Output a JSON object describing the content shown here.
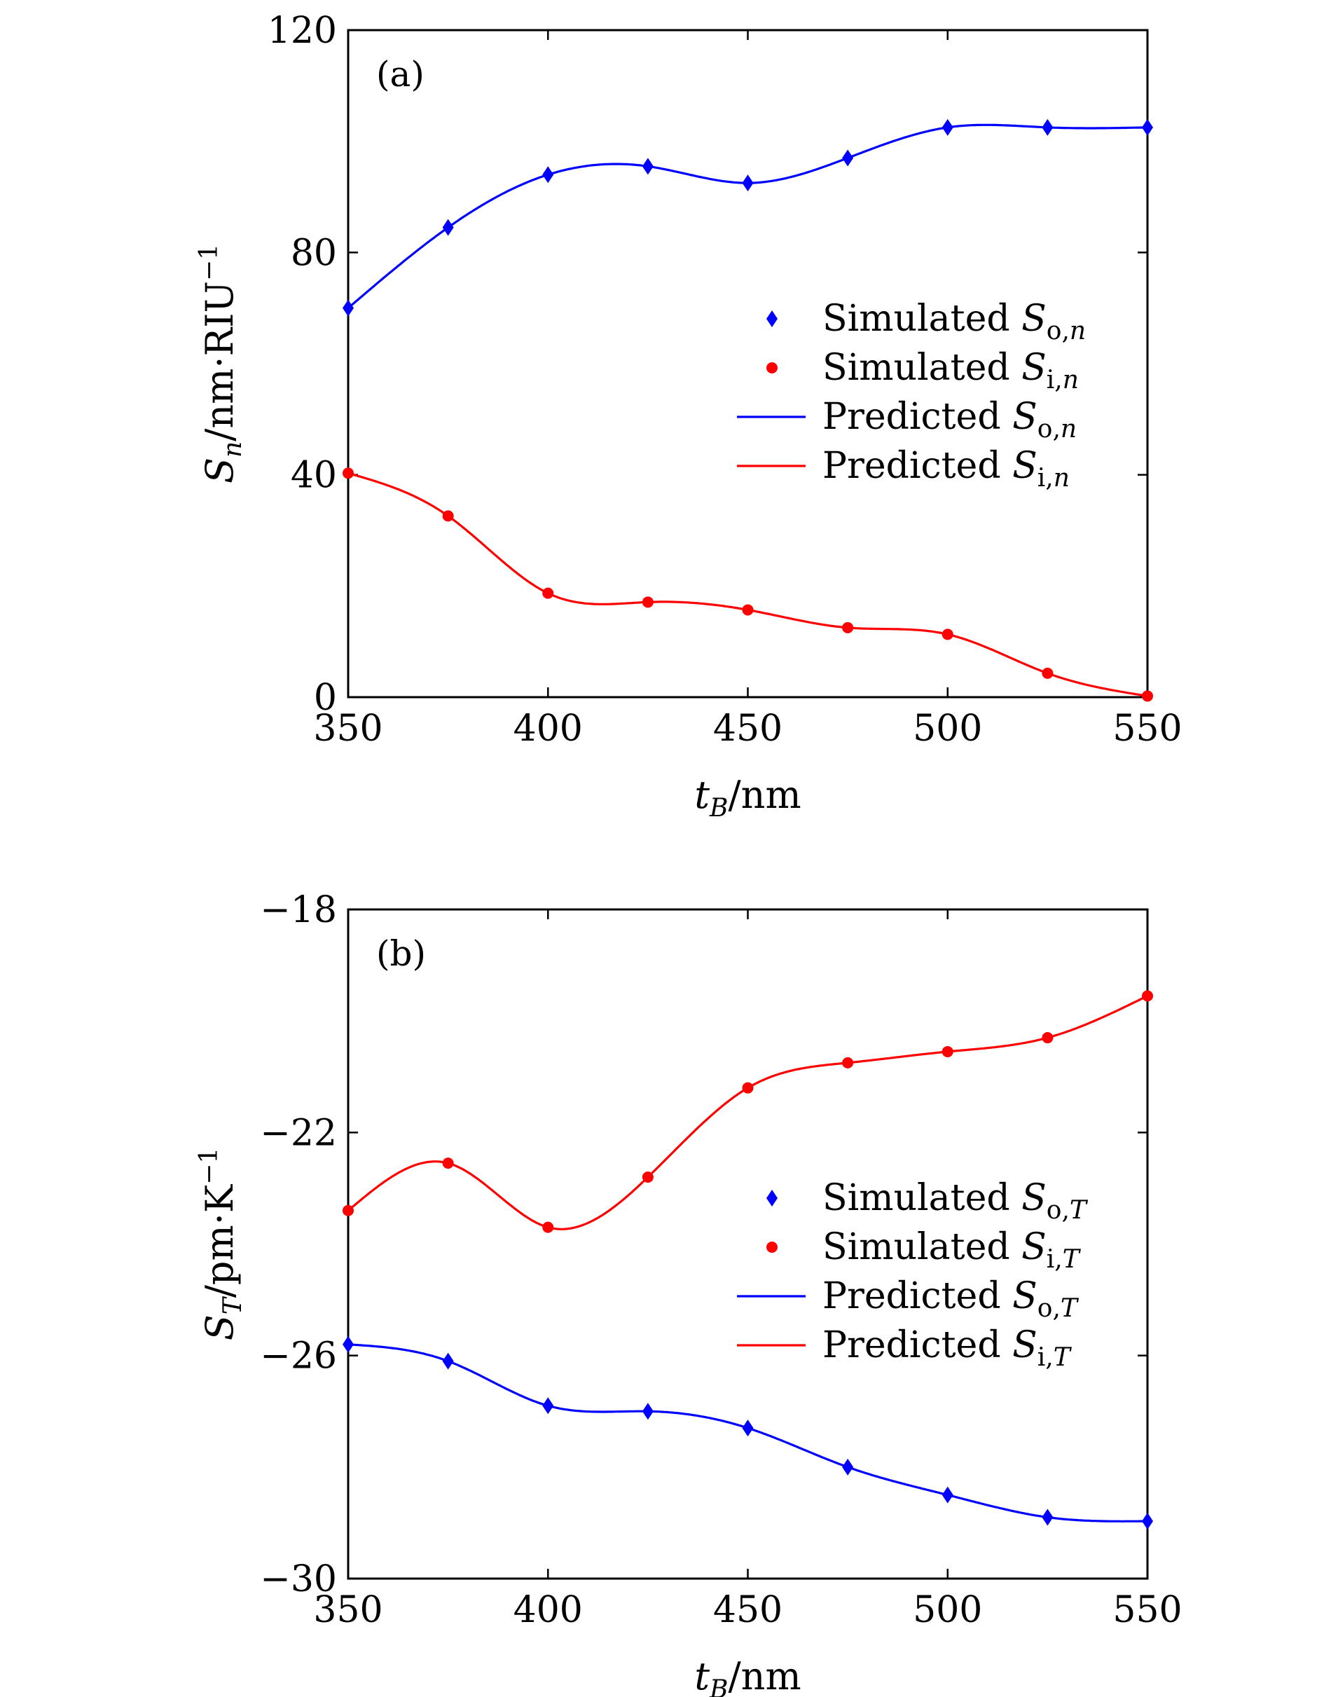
{
  "chart_data": [
    {
      "type": "line",
      "panel_label": "(a)",
      "xlabel_var": "t",
      "xlabel_sub": "B",
      "xlabel_unit": "/nm",
      "ylabel_var": "S",
      "ylabel_sub": "n",
      "ylabel_unit": "/nm·RIU",
      "ylabel_sup": "−1",
      "xlim": [
        350,
        550
      ],
      "ylim": [
        0,
        120
      ],
      "xticks": [
        350,
        400,
        450,
        500,
        550
      ],
      "xtick_labels": [
        "350",
        "400",
        "450",
        "500",
        "550"
      ],
      "yticks": [
        0,
        40,
        80,
        120
      ],
      "ytick_labels": [
        "0",
        "40",
        "80",
        "120"
      ],
      "grid": false,
      "legend_position": "center-right",
      "x": [
        350,
        375,
        400,
        425,
        450,
        475,
        500,
        525,
        550
      ],
      "series": [
        {
          "name_word": "Simulated",
          "name_sym": "S",
          "name_sub": "o,n",
          "kind": "markers",
          "marker": "diamond",
          "color": "#0000ff",
          "values": [
            70,
            84.5,
            94,
            95.5,
            92.5,
            97,
            102.5,
            102.5,
            102.5
          ]
        },
        {
          "name_word": "Simulated",
          "name_sym": "S",
          "name_sub": "i,n",
          "kind": "markers",
          "marker": "circle",
          "color": "#ff0000",
          "values": [
            40.3,
            32.6,
            18.7,
            17.1,
            15.7,
            12.5,
            11.3,
            4.3,
            0.2
          ]
        },
        {
          "name_word": "Predicted",
          "name_sym": "S",
          "name_sub": "o,n",
          "kind": "line",
          "color": "#0000ff",
          "values": [
            70,
            84.5,
            94,
            95.5,
            92.5,
            97,
            102.5,
            102.5,
            102.5
          ]
        },
        {
          "name_word": "Predicted",
          "name_sym": "S",
          "name_sub": "i,n",
          "kind": "line",
          "color": "#ff0000",
          "values": [
            40.3,
            32.6,
            18.7,
            17.1,
            15.7,
            12.5,
            11.3,
            4.3,
            0.2
          ]
        }
      ]
    },
    {
      "type": "line",
      "panel_label": "(b)",
      "xlabel_var": "t",
      "xlabel_sub": "B",
      "xlabel_unit": "/nm",
      "ylabel_var": "S",
      "ylabel_sub": "T",
      "ylabel_unit": "/pm·K",
      "ylabel_sup": "−1",
      "xlim": [
        350,
        550
      ],
      "ylim": [
        -30,
        -18
      ],
      "xticks": [
        350,
        400,
        450,
        500,
        550
      ],
      "xtick_labels": [
        "350",
        "400",
        "450",
        "500",
        "550"
      ],
      "yticks": [
        -30,
        -26,
        -22,
        -18
      ],
      "ytick_labels": [
        "−30",
        "−26",
        "−22",
        "−18"
      ],
      "grid": false,
      "legend_position": "center-right",
      "x": [
        350,
        375,
        400,
        425,
        450,
        475,
        500,
        525,
        550
      ],
      "series": [
        {
          "name_word": "Simulated",
          "name_sym": "S",
          "name_sub": "o,T",
          "kind": "markers",
          "marker": "diamond",
          "color": "#0000ff",
          "values": [
            -25.8,
            -26.1,
            -26.9,
            -27.0,
            -27.3,
            -28.0,
            -28.5,
            -28.9,
            -28.97
          ]
        },
        {
          "name_word": "Simulated",
          "name_sym": "S",
          "name_sub": "i,T",
          "kind": "markers",
          "marker": "circle",
          "color": "#ff0000",
          "values": [
            -23.4,
            -22.55,
            -23.7,
            -22.8,
            -21.2,
            -20.75,
            -20.55,
            -20.3,
            -19.55
          ]
        },
        {
          "name_word": "Predicted",
          "name_sym": "S",
          "name_sub": "o,T",
          "kind": "line",
          "color": "#0000ff",
          "values": [
            -25.8,
            -26.1,
            -26.9,
            -27.0,
            -27.3,
            -28.0,
            -28.5,
            -28.9,
            -28.97
          ]
        },
        {
          "name_word": "Predicted",
          "name_sym": "S",
          "name_sub": "i,T",
          "kind": "line",
          "color": "#ff0000",
          "values": [
            -23.4,
            -22.55,
            -23.7,
            -22.8,
            -21.2,
            -20.75,
            -20.55,
            -20.3,
            -19.55
          ]
        }
      ]
    }
  ]
}
